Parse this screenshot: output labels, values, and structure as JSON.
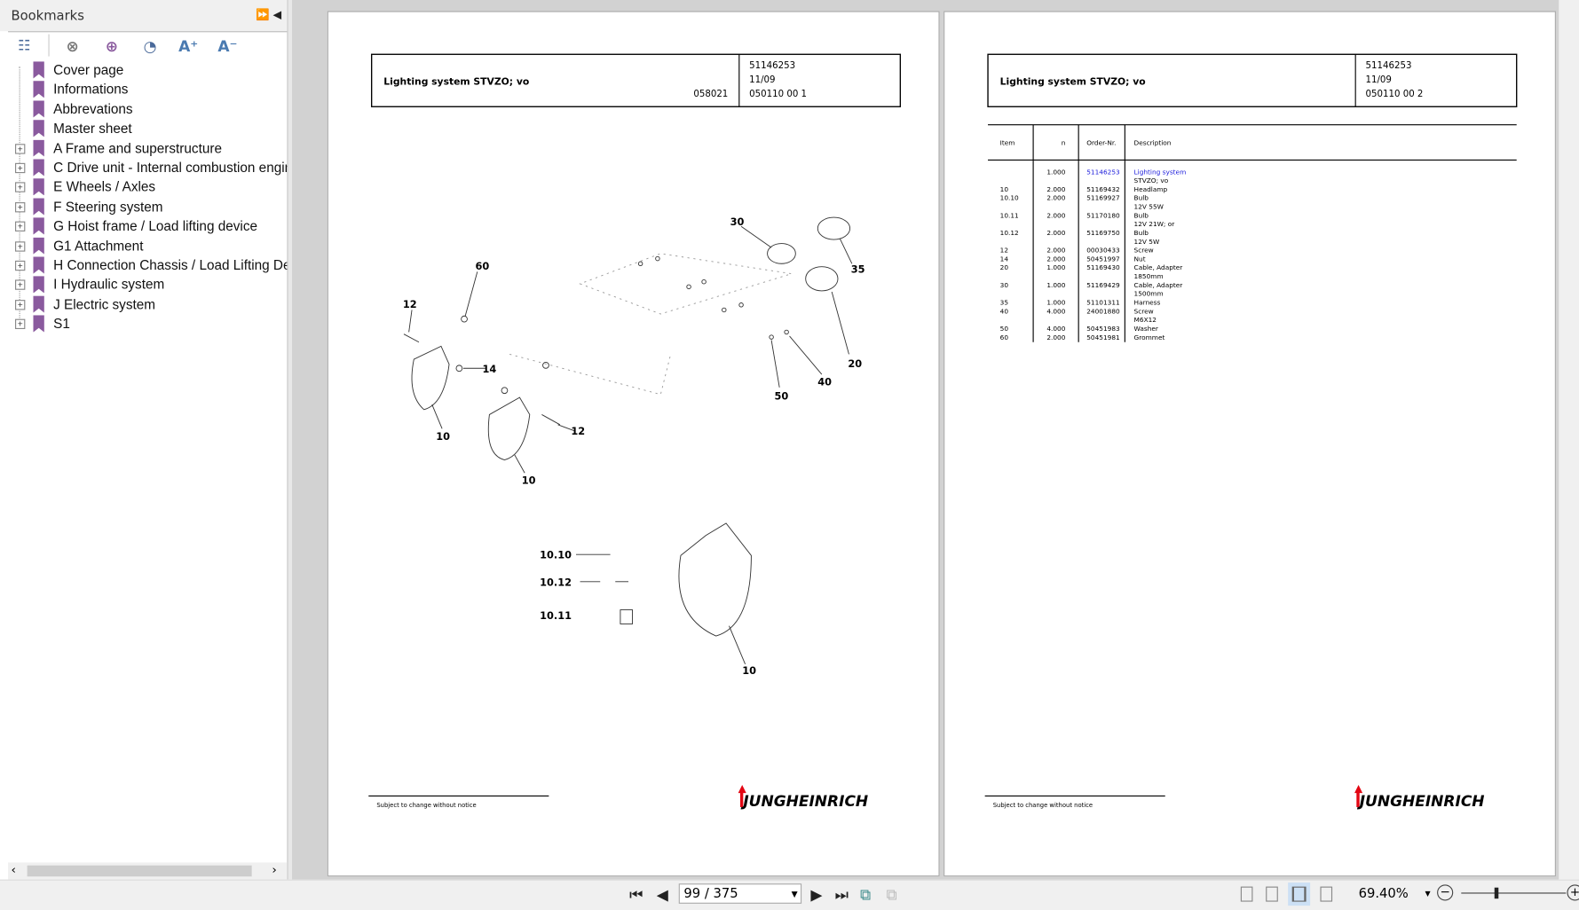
{
  "sidebar": {
    "title": "Bookmarks",
    "expand_all_icon": "double-right-arrow",
    "collapse_icon": "left-triangle",
    "tools": [
      "bookmark-options-icon",
      "delete-bookmark-icon",
      "add-bookmark-icon",
      "bookmark-search-icon",
      "enlarge-text-icon",
      "reduce-text-icon"
    ],
    "tool_glyphs": {
      "enlarge": "A⁺",
      "reduce": "A⁻"
    },
    "items": [
      {
        "label": "Cover page",
        "expandable": false
      },
      {
        "label": "Informations",
        "expandable": false
      },
      {
        "label": "Abbrevations",
        "expandable": false
      },
      {
        "label": "Master sheet",
        "expandable": false
      },
      {
        "label": "A Frame and superstructure",
        "expandable": true
      },
      {
        "label": "C Drive unit - Internal combustion engine",
        "expandable": true
      },
      {
        "label": "E Wheels / Axles",
        "expandable": true
      },
      {
        "label": "F Steering system",
        "expandable": true
      },
      {
        "label": "G Hoist frame / Load lifting device",
        "expandable": true
      },
      {
        "label": "G1 Attachment",
        "expandable": true
      },
      {
        "label": "H Connection Chassis / Load Lifting Device",
        "expandable": true
      },
      {
        "label": "I Hydraulic system",
        "expandable": true
      },
      {
        "label": "J Electric system",
        "expandable": true
      },
      {
        "label": "S1",
        "expandable": true
      }
    ]
  },
  "pages": [
    {
      "title": "Lighting system STVZO; vo",
      "drawing_no": "058021",
      "order_no": "51146253",
      "date": "11/09",
      "ref": "050110 00 1",
      "callouts": [
        "60",
        "12",
        "14",
        "10",
        "10",
        "12",
        "30",
        "35",
        "20",
        "40",
        "50",
        "10.10",
        "10.12",
        "10.11",
        "10"
      ],
      "footer": "Subject to change without notice",
      "logo": "JUNGHEINRICH"
    },
    {
      "title": "Lighting system STVZO; vo",
      "order_no": "51146253",
      "date": "11/09",
      "ref": "050110 00 2",
      "table": {
        "headers": [
          "Item",
          "n",
          "Order-Nr.",
          "Description"
        ],
        "rows": [
          {
            "item": "",
            "n": "1.000",
            "order": "51146253",
            "desc": [
              "Lighting system",
              "STVZO; vo"
            ],
            "link": true
          },
          {
            "item": "10",
            "n": "2.000",
            "order": "51169432",
            "desc": [
              "Headlamp"
            ]
          },
          {
            "item": "10.10",
            "n": "2.000",
            "order": "51169927",
            "desc": [
              "Bulb",
              "12V 55W"
            ]
          },
          {
            "item": "10.11",
            "n": "2.000",
            "order": "51170180",
            "desc": [
              "Bulb",
              "12V 21W; or"
            ]
          },
          {
            "item": "10.12",
            "n": "2.000",
            "order": "51169750",
            "desc": [
              "Bulb",
              "12V 5W"
            ]
          },
          {
            "item": "12",
            "n": "2.000",
            "order": "00030433",
            "desc": [
              "Screw"
            ]
          },
          {
            "item": "14",
            "n": "2.000",
            "order": "50451997",
            "desc": [
              "Nut"
            ]
          },
          {
            "item": "20",
            "n": "1.000",
            "order": "51169430",
            "desc": [
              "Cable, Adapter",
              "1850mm"
            ]
          },
          {
            "item": "30",
            "n": "1.000",
            "order": "51169429",
            "desc": [
              "Cable, Adapter",
              "1500mm"
            ]
          },
          {
            "item": "35",
            "n": "1.000",
            "order": "51101311",
            "desc": [
              "Harness"
            ]
          },
          {
            "item": "40",
            "n": "4.000",
            "order": "24001880",
            "desc": [
              "Screw",
              "M6X12"
            ]
          },
          {
            "item": "50",
            "n": "4.000",
            "order": "50451983",
            "desc": [
              "Washer"
            ]
          },
          {
            "item": "60",
            "n": "2.000",
            "order": "50451981",
            "desc": [
              "Grommet"
            ]
          }
        ]
      },
      "footer": "Subject to change without notice",
      "logo": "JUNGHEINRICH"
    }
  ],
  "colors": {
    "link": "#1a1adb",
    "logo_arrow": "#e30613",
    "bookmark": "#8a5a9e"
  },
  "toolbar": {
    "page_value": "99 / 375",
    "zoom": "69.40%",
    "zoom_level_percent": 69.4,
    "active_view": "two-page"
  }
}
